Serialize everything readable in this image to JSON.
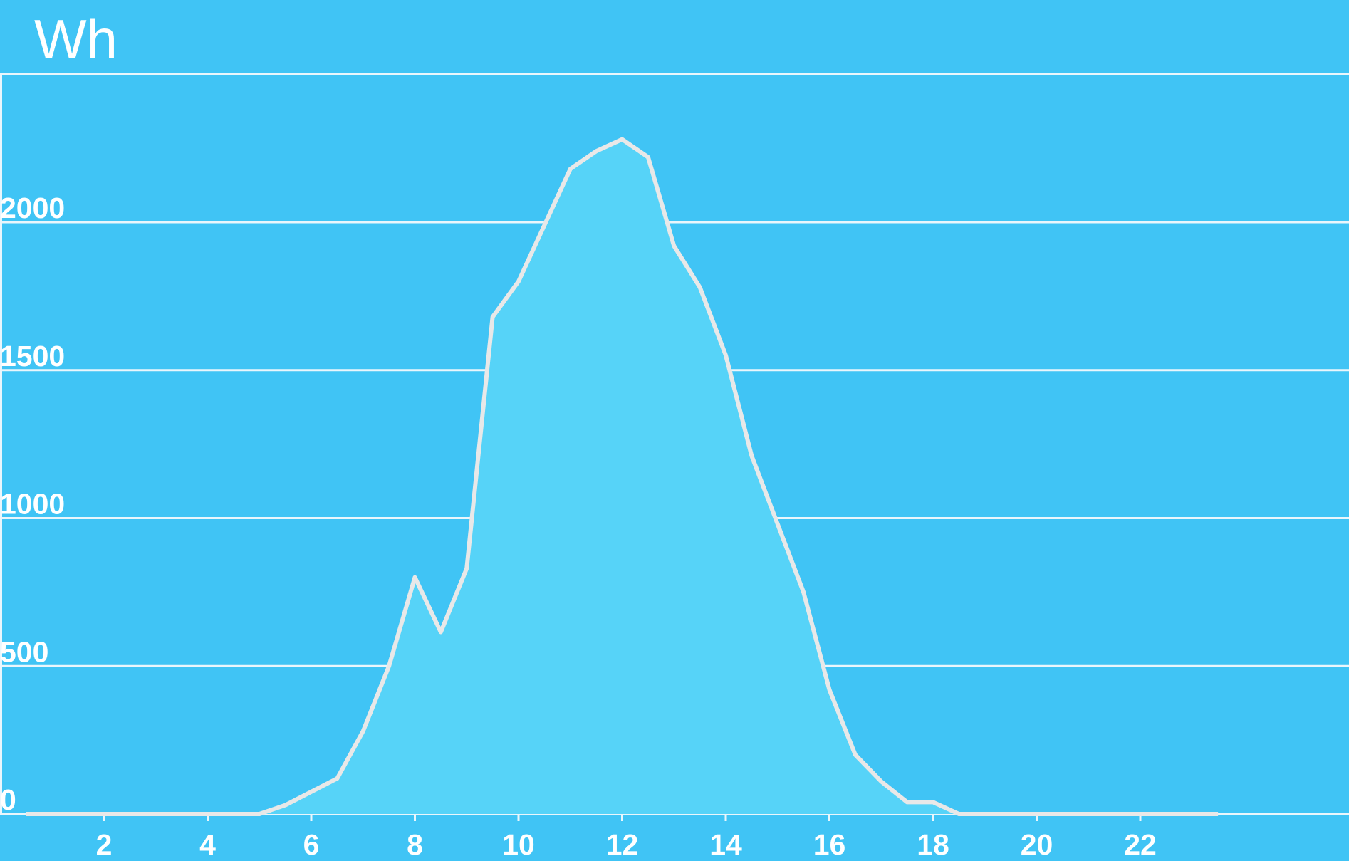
{
  "chart_data": {
    "type": "area",
    "title": "",
    "ylabel": "Wh",
    "xlabel": "",
    "xlim": [
      0,
      26
    ],
    "ylim": [
      0,
      2500
    ],
    "grid": true,
    "x_ticks": [
      2,
      4,
      6,
      8,
      10,
      12,
      14,
      16,
      18,
      20,
      22
    ],
    "x_tick_labels": [
      "2",
      "4",
      "6",
      "8",
      "10",
      "12",
      "14",
      "16",
      "18",
      "20",
      "22"
    ],
    "y_ticks": [
      0,
      500,
      1000,
      1500,
      2000
    ],
    "y_tick_labels": [
      "0",
      "500",
      "1000",
      "1500",
      "2000"
    ],
    "series": [
      {
        "x": [
          0.5,
          1,
          1.5,
          2,
          2.5,
          3,
          3.5,
          4,
          4.5,
          5,
          5.5,
          6,
          6.5,
          7,
          7.5,
          8,
          8.5,
          9,
          9.5,
          10,
          10.5,
          11,
          11.5,
          12,
          12.5,
          13,
          13.5,
          14,
          14.5,
          15,
          15.5,
          16,
          16.5,
          17,
          17.5,
          18,
          18.5,
          19,
          19.5,
          20,
          20.5,
          21,
          21.5,
          22,
          22.5,
          23,
          23.5
        ],
        "y": [
          0,
          0,
          0,
          0,
          0,
          0,
          0,
          0,
          0,
          0,
          30,
          75,
          120,
          280,
          500,
          800,
          615,
          830,
          1680,
          1800,
          1990,
          2180,
          2240,
          2280,
          2220,
          1920,
          1780,
          1550,
          1210,
          980,
          750,
          420,
          200,
          110,
          40,
          40,
          0,
          0,
          0,
          0,
          0,
          0,
          0,
          0,
          0,
          0,
          0
        ]
      }
    ],
    "colors": {
      "background": "#40c4f5",
      "area_fill": "#56d3f8",
      "line": "#e8e8e8",
      "grid": "#eaf6fc",
      "text": "#ffffff"
    }
  }
}
